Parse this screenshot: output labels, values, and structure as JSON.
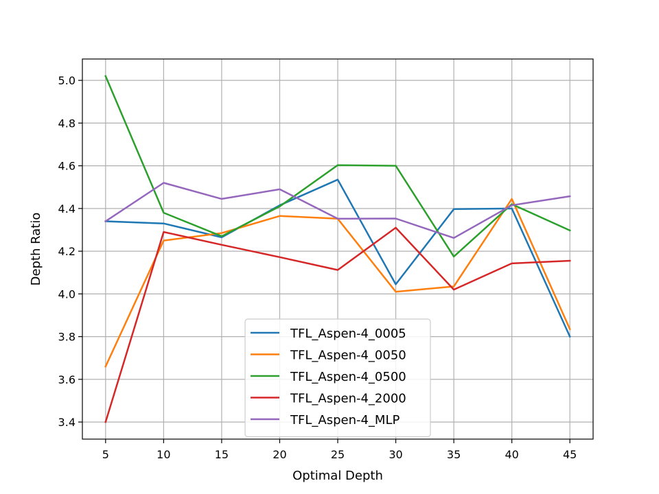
{
  "chart_data": {
    "type": "line",
    "title": "",
    "xlabel": "Optimal Depth",
    "ylabel": "Depth Ratio",
    "x": [
      5,
      10,
      15,
      20,
      25,
      30,
      35,
      40,
      45
    ],
    "xticks": [
      5,
      10,
      15,
      20,
      25,
      30,
      35,
      40,
      45
    ],
    "yticks": [
      3.4,
      3.6,
      3.8,
      4.0,
      4.2,
      4.4,
      4.6,
      4.8,
      5.0
    ],
    "ytick_labels": [
      "3.4",
      "3.6",
      "3.8",
      "4.0",
      "4.2",
      "4.4",
      "4.6",
      "4.8",
      "5.0"
    ],
    "xlim": [
      3,
      47
    ],
    "ylim": [
      3.32,
      5.1
    ],
    "grid": true,
    "legend_position": "lower-center",
    "series": [
      {
        "name": "TFL_Aspen-4_0005",
        "color": "#1f77b4",
        "values": [
          4.34,
          4.33,
          4.265,
          4.415,
          4.535,
          4.045,
          4.397,
          4.4,
          3.8
        ]
      },
      {
        "name": "TFL_Aspen-4_0050",
        "color": "#ff7f0e",
        "values": [
          3.66,
          4.25,
          4.285,
          4.365,
          4.352,
          4.01,
          4.035,
          4.445,
          3.835
        ]
      },
      {
        "name": "TFL_Aspen-4_0500",
        "color": "#2ca02c",
        "values": [
          5.02,
          4.38,
          4.27,
          4.41,
          4.603,
          4.6,
          4.175,
          4.42,
          4.297
        ]
      },
      {
        "name": "TFL_Aspen-4_2000",
        "color": "#d62728",
        "values": [
          3.4,
          4.29,
          4.23,
          4.172,
          4.112,
          4.31,
          4.02,
          4.143,
          4.155
        ]
      },
      {
        "name": "TFL_Aspen-4_MLP",
        "color": "#9467bd",
        "values": [
          4.34,
          4.52,
          4.445,
          4.49,
          4.352,
          4.353,
          4.262,
          4.415,
          4.457
        ]
      }
    ]
  }
}
